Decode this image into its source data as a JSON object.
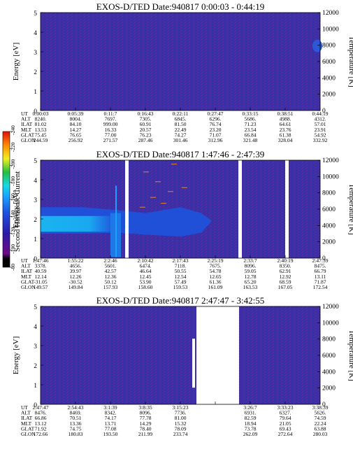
{
  "chart_data": [
    {
      "type": "heatmap",
      "title": "EXOS-D/TED   Date:940817  0:00:03 - 0:44:19",
      "ylabel": "Energy [eV]",
      "y2label": "Temperature [K]",
      "ylim": [
        0,
        5
      ],
      "y2lim": [
        0,
        12000
      ],
      "yticks": [
        "0",
        "1",
        "2",
        "3",
        "4",
        "5"
      ],
      "y2ticks": [
        "0",
        "2000",
        "4000",
        "6000",
        "8000",
        "10000",
        "12000"
      ],
      "annotation_rows": [
        {
          "label": "UT",
          "values": [
            "0:00:03",
            "0:05:39",
            "0:11:7",
            "0:16:43",
            "0:22:11",
            "0:27:47",
            "0:33:15",
            "0:38:51",
            "0:44:19"
          ]
        },
        {
          "label": "ALT",
          "values": [
            "8240.",
            "8004.",
            "7697.",
            "7305.",
            "6845.",
            "6296.",
            "5686.",
            "4988.",
            "4312."
          ]
        },
        {
          "label": "ILAT",
          "values": [
            "81.02",
            "84.10",
            "999.00",
            "60.91",
            "81.50",
            "76.74",
            "71.23",
            "64.61",
            "57.01"
          ]
        },
        {
          "label": "MLT",
          "values": [
            "13.53",
            "14.27",
            "16.33",
            "20.57",
            "22.49",
            "23.20",
            "23.54",
            "23.76",
            "23.91"
          ]
        },
        {
          "label": "GLAT",
          "values": [
            "75.45",
            "76.65",
            "77.00",
            "76.23",
            "74.27",
            "71.07",
            "66.84",
            "61.38",
            "54.92"
          ]
        },
        {
          "label": "GLON",
          "values": [
            "244.59",
            "256.92",
            "271.57",
            "287.46",
            "301.46",
            "312.96",
            "321.48",
            "328.04",
            "332.92"
          ]
        }
      ]
    },
    {
      "type": "heatmap",
      "title": "EXOS-D/TED   Date:940817  1:47:46 - 2:47:39",
      "ylabel": "Energy [eV]",
      "y2label": "Temperature [K]",
      "ylim": [
        0,
        5
      ],
      "y2lim": [
        0,
        12000
      ],
      "yticks": [
        "0",
        "1",
        "2",
        "3",
        "4",
        "5"
      ],
      "y2ticks": [
        "0",
        "2000",
        "4000",
        "6000",
        "8000",
        "10000",
        "12000"
      ],
      "annotation_rows": [
        {
          "label": "UT",
          "values": [
            "1:47:46",
            "1:55:22",
            "2:2:46",
            "2:10:42",
            "2:17:43",
            "2:25:19",
            "2:33:7",
            "2:40:19",
            "2:47:39"
          ]
        },
        {
          "label": "ALT",
          "values": [
            "3378.",
            "4656.",
            "5601.",
            "6474.",
            "7118.",
            "7675.",
            "8096.",
            "8350.",
            "8475."
          ]
        },
        {
          "label": "ILAT",
          "values": [
            "40.59",
            "39.97",
            "42.57",
            "46.64",
            "50.55",
            "54.78",
            "59.05",
            "62.91",
            "66.79"
          ]
        },
        {
          "label": "MLT",
          "values": [
            "12.14",
            "12.26",
            "12.36",
            "12.45",
            "12.54",
            "12.65",
            "12.78",
            "12.92",
            "13.11"
          ]
        },
        {
          "label": "GLAT",
          "values": [
            "-31.05",
            "-30.52",
            "50.12",
            "53.90",
            "57.49",
            "61.36",
            "65.20",
            "68.59",
            "71.87"
          ]
        },
        {
          "label": "GLON",
          "values": [
            "149.57",
            "149.84",
            "157.93",
            "158.60",
            "159.53",
            "161.09",
            "163.53",
            "167.05",
            "172.54"
          ]
        }
      ]
    },
    {
      "type": "heatmap",
      "title": "EXOS-D/TED   Date:940817  2:47:47 - 3:42:55",
      "ylabel": "Energy [eV]",
      "y2label": "Temperature [K]",
      "ylim": [
        0,
        5
      ],
      "y2lim": [
        0,
        12000
      ],
      "yticks": [
        "0",
        "1",
        "2",
        "3",
        "4",
        "5"
      ],
      "y2ticks": [
        "0",
        "2000",
        "4000",
        "6000",
        "8000",
        "10000",
        "12000"
      ],
      "annotation_rows": [
        {
          "label": "UT",
          "values": [
            "2:47:47",
            "2:54:43",
            "3:1:39",
            "3:8:35",
            "3:15:23",
            "",
            "3:26:7",
            "3:33:23",
            "3:38:39"
          ]
        },
        {
          "label": "ALT",
          "values": [
            "8476.",
            "8469.",
            "8342.",
            "8096.",
            "7736.",
            "",
            "6931.",
            "6327.",
            "5626."
          ]
        },
        {
          "label": "ILAT",
          "values": [
            "66.86",
            "70.51",
            "74.17",
            "77.78",
            "81.00",
            "",
            "82.59",
            "79.64",
            "74.59"
          ]
        },
        {
          "label": "MLT",
          "values": [
            "13.12",
            "13.36",
            "13.71",
            "14.29",
            "15.32",
            "",
            "18.94",
            "21.05",
            "22.24"
          ]
        },
        {
          "label": "GLAT",
          "values": [
            "71.92",
            "74.75",
            "77.08",
            "78.40",
            "78.09",
            "",
            "73.78",
            "69.43",
            "63.88"
          ]
        },
        {
          "label": "GLON",
          "values": [
            "172.66",
            "180.83",
            "193.50",
            "211.99",
            "233.74",
            "",
            "262.09",
            "272.64",
            "280.03"
          ]
        }
      ]
    }
  ],
  "colorbar": {
    "label": "Second Harmonic Current",
    "ticks": [
      "-80",
      "-100",
      "-120",
      "-140",
      "-160",
      "-180",
      "-200",
      "-220",
      "-240"
    ],
    "colors": [
      "#000000",
      "#7a0a8c",
      "#2a1aa8",
      "#1e50e0",
      "#1aa0ff",
      "#17d8e8",
      "#20c040",
      "#f0f020",
      "#ff8a00",
      "#e01010"
    ]
  }
}
